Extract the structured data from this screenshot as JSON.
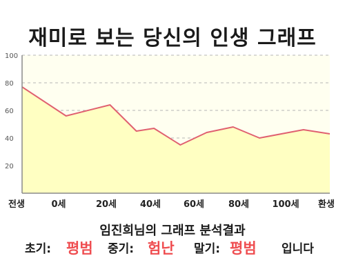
{
  "title": "재미로 보는 당신의 인생 그래프",
  "colors": {
    "line": "#e06070",
    "fill": "#ffffc2",
    "highlight": "#ef4d50",
    "axis": "#8a8a8a",
    "grid": "#b5b5b5"
  },
  "chart_data": {
    "type": "area",
    "x_tick_labels": [
      "전생",
      "0세",
      "20세",
      "40세",
      "60세",
      "80세",
      "100세",
      "환생"
    ],
    "x": [
      0,
      5,
      10,
      13,
      15,
      18,
      21,
      24,
      27,
      32,
      35
    ],
    "values": [
      77,
      56,
      64,
      45,
      47,
      35,
      44,
      48,
      40,
      46,
      43
    ],
    "ylim": [
      0,
      100
    ],
    "y_ticks": [
      20,
      40,
      60,
      80,
      100
    ],
    "grid": "horizontal dashed",
    "title": "",
    "xlabel": "",
    "ylabel": ""
  },
  "result": {
    "heading": "임진희님의 그래프 분석결과",
    "early_label": "초기:",
    "early_value": "평범",
    "mid_label": "중기:",
    "mid_value": "험난",
    "late_label": "말기:",
    "late_value": "평범",
    "ending": "입니다"
  }
}
